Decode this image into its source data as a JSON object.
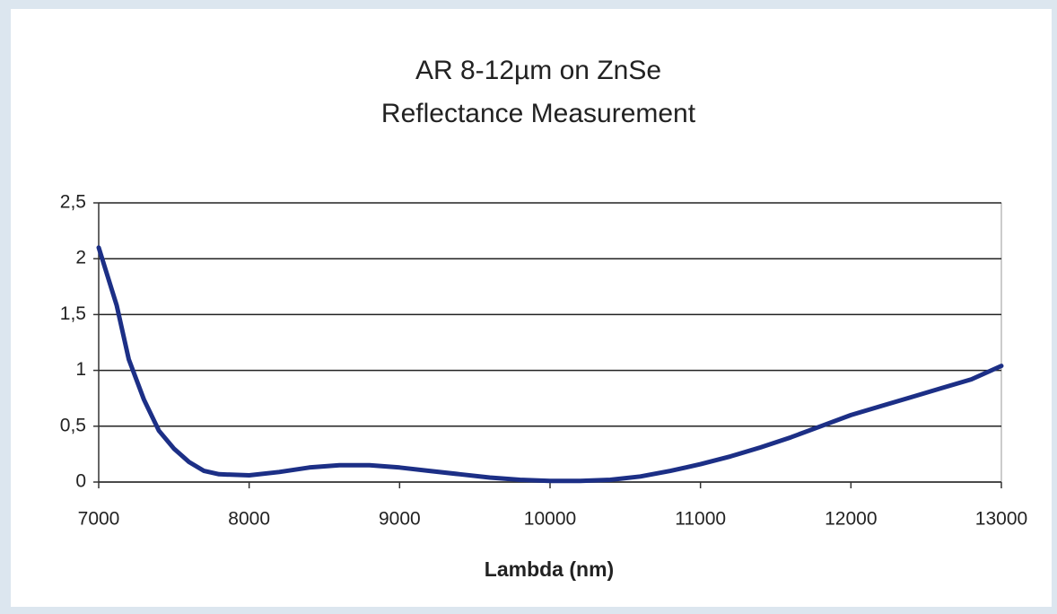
{
  "chart_data": {
    "type": "line",
    "title": "AR 8-12µm on ZnSe",
    "subtitle": "Reflectance Measurement",
    "x_label": "Lambda (nm)",
    "x": [
      7000,
      7120,
      7200,
      7300,
      7400,
      7500,
      7600,
      7700,
      7800,
      8000,
      8200,
      8400,
      8600,
      8800,
      9000,
      9200,
      9400,
      9600,
      9800,
      10000,
      10200,
      10400,
      10600,
      10800,
      11000,
      11200,
      11400,
      11600,
      11800,
      12000,
      12200,
      12400,
      12600,
      12800,
      13000
    ],
    "values": [
      2.1,
      1.58,
      1.1,
      0.74,
      0.46,
      0.3,
      0.18,
      0.1,
      0.07,
      0.06,
      0.09,
      0.13,
      0.15,
      0.15,
      0.13,
      0.1,
      0.07,
      0.04,
      0.02,
      0.01,
      0.01,
      0.02,
      0.05,
      0.1,
      0.16,
      0.23,
      0.31,
      0.4,
      0.5,
      0.6,
      0.68,
      0.76,
      0.84,
      0.92,
      1.04
    ],
    "color": "#1c2f86",
    "xlim": [
      7000,
      13000
    ],
    "xticks": [
      7000,
      8000,
      9000,
      10000,
      11000,
      12000,
      13000
    ],
    "ylim": [
      0,
      2.5
    ],
    "yticks": [
      0,
      {
        "value": 0.5,
        "label": "0,5"
      },
      1,
      {
        "value": 1.5,
        "label": "1,5"
      },
      2,
      {
        "value": 2.5,
        "label": "2,5"
      }
    ],
    "grid": true
  }
}
